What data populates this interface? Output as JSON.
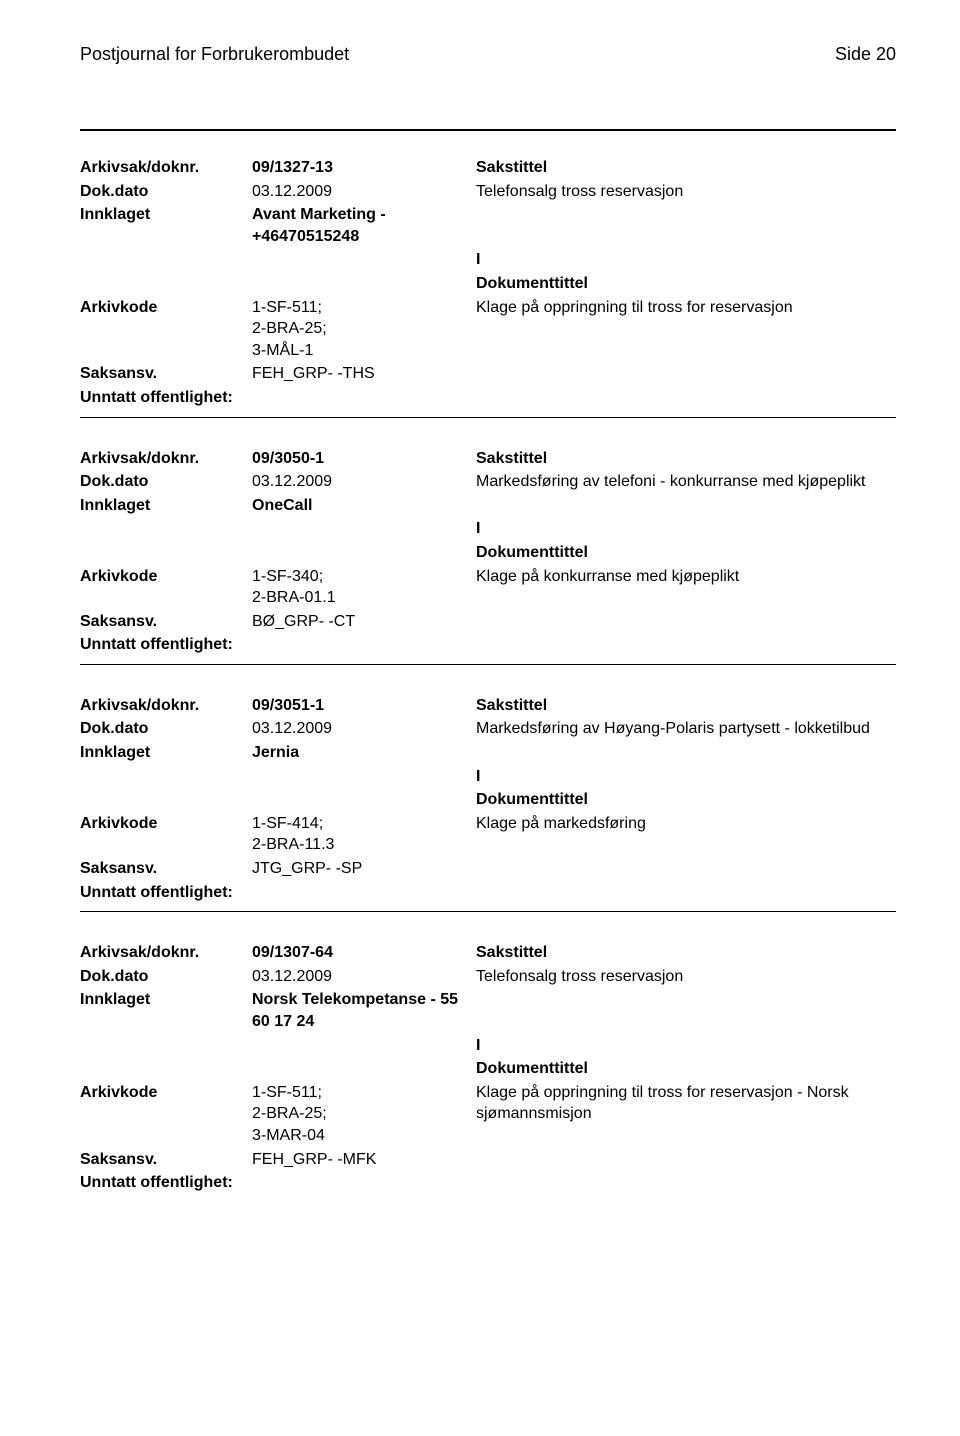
{
  "header": {
    "title": "Postjournal for Forbrukerombudet",
    "page_label": "Side 20"
  },
  "labels": {
    "arkivsak": "Arkivsak/doknr.",
    "dokdato": "Dok.dato",
    "innklaget": "Innklaget",
    "arkivkode": "Arkivkode",
    "saksansv": "Saksansv.",
    "unntatt": "Unntatt offentlighet:",
    "sakstittel": "Sakstittel",
    "dokumenttittel": "Dokumenttittel",
    "i": "I"
  },
  "records": [
    {
      "doknr": "09/1327-13",
      "dokdato": "03.12.2009",
      "sakstittel": "Telefonsalg tross reservasjon",
      "innklaget": "Avant Marketing - +46470515248",
      "arkivkode": "1-SF-511;\n2-BRA-25;\n3-MÅL-1",
      "dokumenttittel": "Klage på oppringning til tross for reservasjon",
      "saksansv": "FEH_GRP- -THS",
      "unntatt": ""
    },
    {
      "doknr": "09/3050-1",
      "dokdato": "03.12.2009",
      "sakstittel": "Markedsføring av telefoni - konkurranse med kjøpeplikt",
      "innklaget": "OneCall",
      "arkivkode": "1-SF-340;\n2-BRA-01.1",
      "dokumenttittel": "Klage på konkurranse med kjøpeplikt",
      "saksansv": "BØ_GRP- -CT",
      "unntatt": ""
    },
    {
      "doknr": "09/3051-1",
      "dokdato": "03.12.2009",
      "sakstittel": "Markedsføring av Høyang-Polaris partysett - lokketilbud",
      "innklaget": "Jernia",
      "arkivkode": "1-SF-414;\n2-BRA-11.3",
      "dokumenttittel": "Klage på markedsføring",
      "saksansv": "JTG_GRP- -SP",
      "unntatt": ""
    },
    {
      "doknr": "09/1307-64",
      "dokdato": "03.12.2009",
      "sakstittel": "Telefonsalg tross reservasjon",
      "innklaget": "Norsk Telekompetanse - 55 60 17 24",
      "arkivkode": "1-SF-511;\n2-BRA-25;\n3-MAR-04",
      "dokumenttittel": "Klage på oppringning til tross for reservasjon - Norsk sjømannsmisjon",
      "saksansv": "FEH_GRP- -MFK",
      "unntatt": ""
    }
  ]
}
